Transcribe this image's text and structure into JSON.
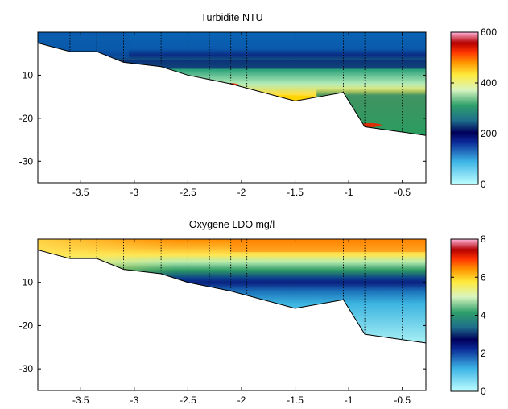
{
  "chart_data": [
    {
      "type": "heatmap",
      "title": "Turbidite NTU",
      "xlabel": "",
      "ylabel": "",
      "xlim": [
        -3.9,
        -0.28
      ],
      "ylim": [
        -35,
        0
      ],
      "x_ticks": [
        -3.5,
        -3,
        -2.5,
        -2,
        -1.5,
        -1,
        -0.5
      ],
      "y_ticks": [
        -10,
        -20,
        -30
      ],
      "x_tick_labels": [
        "-3.5",
        "-3",
        "-2.5",
        "-2",
        "-1.5",
        "-1",
        "-0.5"
      ],
      "y_tick_labels": [
        "-10",
        "-20",
        "-30"
      ],
      "grid": false,
      "colorbar": {
        "range": [
          0,
          600
        ],
        "ticks": [
          0,
          200,
          400,
          600
        ],
        "tick_labels": [
          "0",
          "200",
          "400",
          "600"
        ],
        "colormap": "jet-like (cyan → blue → green → yellow → red → pink)"
      },
      "bottom_profile": [
        {
          "x": -3.9,
          "depth": -2.5
        },
        {
          "x": -3.6,
          "depth": -4.5
        },
        {
          "x": -3.35,
          "depth": -4.5
        },
        {
          "x": -3.1,
          "depth": -7
        },
        {
          "x": -2.75,
          "depth": -8
        },
        {
          "x": -2.5,
          "depth": -10
        },
        {
          "x": -2.1,
          "depth": -12
        },
        {
          "x": -1.5,
          "depth": -16
        },
        {
          "x": -1.05,
          "depth": -14
        },
        {
          "x": -0.85,
          "depth": -22
        },
        {
          "x": -0.28,
          "depth": -24
        }
      ],
      "profile_stations": [
        -3.6,
        -3.35,
        -3.1,
        -2.75,
        -2.5,
        -2.3,
        -2.1,
        -1.95,
        -1.5,
        -1.05,
        -0.85,
        -0.5
      ],
      "field_description": "values ~150-200 near surface, ~250 at -8 m, 300-450 in bottom layer, up to 550 in near-bottom pockets"
    },
    {
      "type": "heatmap",
      "title": "Oxygene LDO mg/l",
      "xlabel": "",
      "ylabel": "",
      "xlim": [
        -3.9,
        -0.28
      ],
      "ylim": [
        -35,
        0
      ],
      "x_ticks": [
        -3.5,
        -3,
        -2.5,
        -2,
        -1.5,
        -1,
        -0.5
      ],
      "y_ticks": [
        -10,
        -20,
        -30
      ],
      "x_tick_labels": [
        "-3.5",
        "-3",
        "-2.5",
        "-2",
        "-1.5",
        "-1",
        "-0.5"
      ],
      "y_tick_labels": [
        "-10",
        "-20",
        "-30"
      ],
      "grid": false,
      "colorbar": {
        "range": [
          0,
          8
        ],
        "ticks": [
          0,
          2,
          4,
          6,
          8
        ],
        "tick_labels": [
          "0",
          "2",
          "4",
          "6",
          "8"
        ],
        "colormap": "jet-like (cyan → blue → green → yellow → red → pink)"
      },
      "bottom_profile": [
        {
          "x": -3.9,
          "depth": -2.5
        },
        {
          "x": -3.6,
          "depth": -4.5
        },
        {
          "x": -3.35,
          "depth": -4.5
        },
        {
          "x": -3.1,
          "depth": -7
        },
        {
          "x": -2.75,
          "depth": -8
        },
        {
          "x": -2.5,
          "depth": -10
        },
        {
          "x": -2.1,
          "depth": -12
        },
        {
          "x": -1.5,
          "depth": -16
        },
        {
          "x": -1.05,
          "depth": -14
        },
        {
          "x": -0.85,
          "depth": -22
        },
        {
          "x": -0.28,
          "depth": -24
        }
      ],
      "profile_stations": [
        -3.6,
        -3.35,
        -3.1,
        -2.75,
        -2.5,
        -2.3,
        -2.1,
        -1.95,
        -1.5,
        -1.05,
        -0.85,
        -0.5
      ],
      "field_description": "~5.5-6.5 near surface, decreasing to ~4 at -6 m, ~2 at -10 m, ~1 or less in bottom layer"
    }
  ]
}
